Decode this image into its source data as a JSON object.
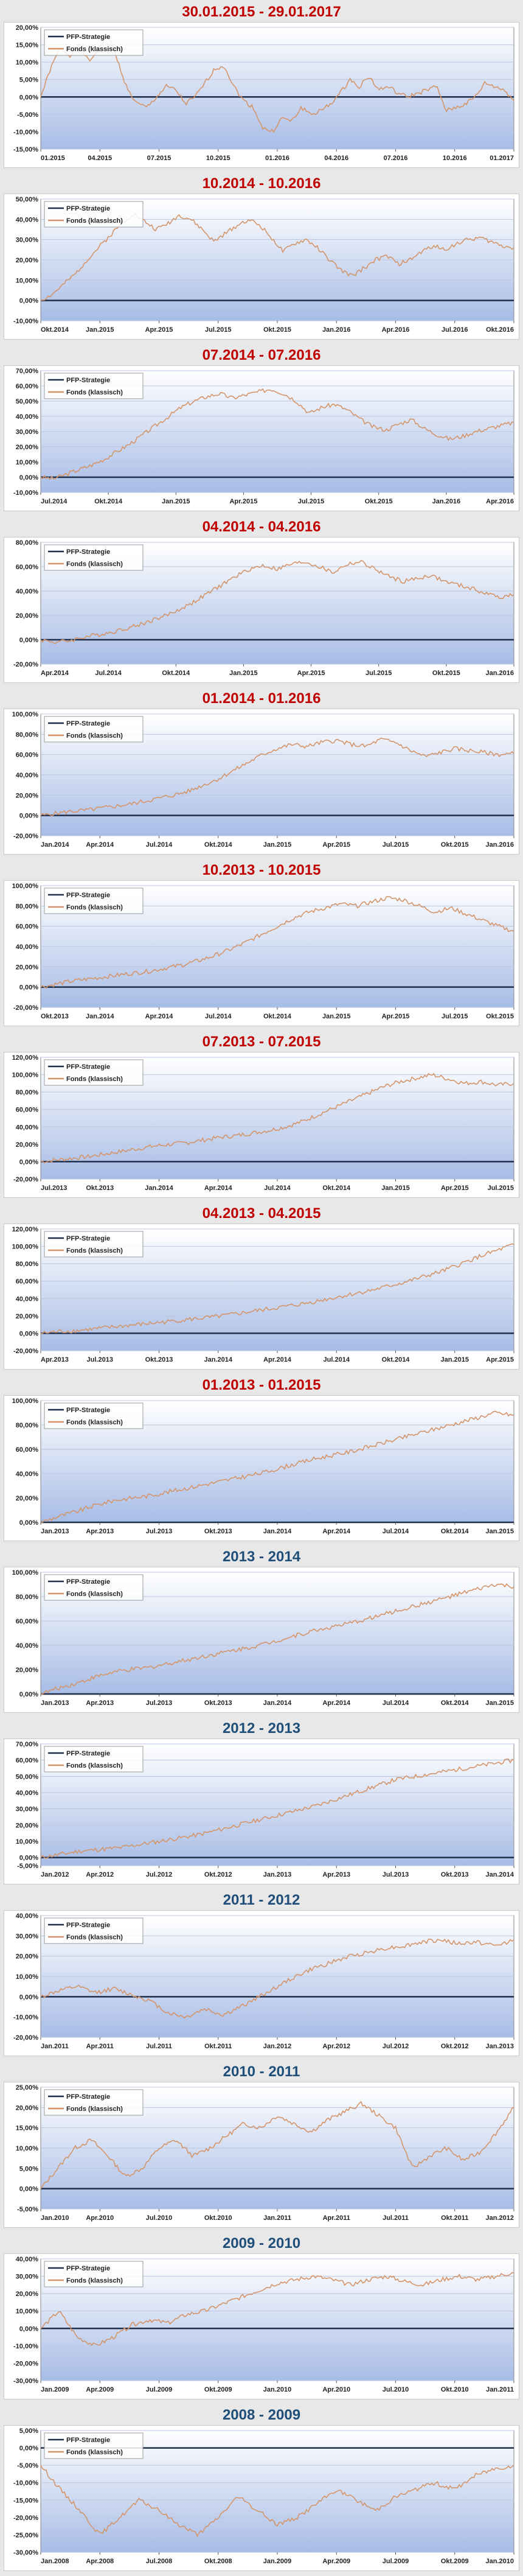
{
  "legend": {
    "strategy": "PFP-Strategie",
    "fund": "Fonds (klassisch)"
  },
  "colors": {
    "title_red": "#c00000",
    "title_blue": "#1f4e79",
    "fund_line": "#d4956a",
    "strategy_line": "#1f2e4a",
    "plot_top": "#ffffff",
    "plot_bottom": "#a7bce6"
  },
  "chart_data": [
    {
      "type": "line",
      "title": "30.01.2015 - 29.01.2017",
      "title_color": "red",
      "ylim": [
        -15,
        20
      ],
      "yticks": [
        20,
        15,
        10,
        5,
        0,
        -5,
        -10,
        -15
      ],
      "xticks": [
        "01.2015",
        "04.2015",
        "07.2015",
        "10.2015",
        "01.2016",
        "04.2016",
        "07.2016",
        "10.2016",
        "01.2017"
      ],
      "series": [
        {
          "name": "Fonds (klassisch)",
          "values": [
            0,
            8,
            14,
            12,
            15,
            10,
            14,
            18,
            10,
            2,
            -2,
            -3,
            0,
            3,
            2,
            -2,
            0,
            4,
            8,
            9,
            3,
            -1,
            -3,
            -9,
            -10,
            -6,
            -7,
            -3,
            -5,
            -4,
            -2,
            1,
            5,
            3,
            6,
            2,
            3,
            1,
            0,
            1,
            2,
            3,
            -4,
            -3,
            -2,
            0,
            4,
            3,
            2,
            -1
          ]
        }
      ]
    },
    {
      "type": "line",
      "title": "10.2014 - 10.2016",
      "title_color": "red",
      "ylim": [
        -10,
        50
      ],
      "yticks": [
        50,
        40,
        30,
        20,
        10,
        0,
        -10
      ],
      "xticks": [
        "Okt.2014",
        "Jan.2015",
        "Apr.2015",
        "Jul.2015",
        "Okt.2015",
        "Jan.2016",
        "Apr.2016",
        "Jul.2016",
        "Okt.2016"
      ],
      "series": [
        {
          "name": "Fonds (klassisch)",
          "values": [
            0,
            3,
            8,
            13,
            20,
            26,
            32,
            38,
            43,
            39,
            35,
            38,
            42,
            40,
            35,
            29,
            33,
            37,
            40,
            37,
            31,
            24,
            28,
            30,
            26,
            20,
            15,
            12,
            16,
            20,
            22,
            18,
            20,
            24,
            27,
            25,
            28,
            30,
            31,
            29,
            27,
            26
          ]
        }
      ]
    },
    {
      "type": "line",
      "title": "07.2014 - 07.2016",
      "title_color": "red",
      "ylim": [
        -10,
        70
      ],
      "yticks": [
        70,
        60,
        50,
        40,
        30,
        20,
        10,
        0,
        -10
      ],
      "xticks": [
        "Jul.2014",
        "Okt.2014",
        "Jan.2015",
        "Apr.2015",
        "Jul.2015",
        "Okt.2015",
        "Jan.2016",
        "Apr.2016"
      ],
      "series": [
        {
          "name": "Fonds (klassisch)",
          "values": [
            0,
            -1,
            2,
            5,
            8,
            12,
            17,
            22,
            28,
            34,
            40,
            46,
            50,
            53,
            55,
            52,
            54,
            56,
            58,
            55,
            50,
            42,
            46,
            48,
            44,
            38,
            33,
            31,
            35,
            38,
            32,
            28,
            25,
            27,
            30,
            32,
            34,
            36
          ]
        }
      ]
    },
    {
      "type": "line",
      "title": "04.2014 - 04.2016",
      "title_color": "red",
      "ylim": [
        -20,
        80
      ],
      "yticks": [
        80,
        60,
        40,
        20,
        0,
        -20
      ],
      "xticks": [
        "Apr.2014",
        "Jul.2014",
        "Okt.2014",
        "Jan.2015",
        "Apr.2015",
        "Jul.2015",
        "Okt.2015",
        "Jan.2016"
      ],
      "series": [
        {
          "name": "Fonds (klassisch)",
          "values": [
            0,
            -2,
            -1,
            2,
            4,
            6,
            9,
            12,
            16,
            20,
            25,
            31,
            38,
            45,
            52,
            58,
            61,
            58,
            62,
            64,
            60,
            55,
            62,
            64,
            58,
            52,
            48,
            50,
            53,
            48,
            45,
            42,
            38,
            35,
            37
          ]
        }
      ]
    },
    {
      "type": "line",
      "title": "01.2014 - 01.2016",
      "title_color": "red",
      "ylim": [
        -20,
        100
      ],
      "yticks": [
        100,
        80,
        60,
        40,
        20,
        0,
        -20
      ],
      "xticks": [
        "Jan.2014",
        "Apr.2014",
        "Jul.2014",
        "Okt.2014",
        "Jan.2015",
        "Apr.2015",
        "Jul.2015",
        "Okt.2015",
        "Jan.2016"
      ],
      "series": [
        {
          "name": "Fonds (klassisch)",
          "values": [
            0,
            2,
            4,
            5,
            7,
            9,
            11,
            14,
            17,
            20,
            24,
            30,
            36,
            44,
            52,
            60,
            66,
            70,
            68,
            72,
            74,
            70,
            68,
            75,
            72,
            64,
            58,
            62,
            66,
            64,
            62,
            60,
            61
          ]
        }
      ]
    },
    {
      "type": "line",
      "title": "10.2013 - 10.2015",
      "title_color": "red",
      "ylim": [
        -20,
        100
      ],
      "yticks": [
        100,
        80,
        60,
        40,
        20,
        0,
        -20
      ],
      "xticks": [
        "Okt.2013",
        "Jan.2014",
        "Apr.2014",
        "Jul.2014",
        "Okt.2014",
        "Jan.2015",
        "Apr.2015",
        "Jul.2015",
        "Okt.2015"
      ],
      "series": [
        {
          "name": "Fonds (klassisch)",
          "values": [
            0,
            3,
            6,
            8,
            10,
            12,
            14,
            16,
            19,
            22,
            26,
            31,
            37,
            44,
            52,
            60,
            68,
            74,
            78,
            82,
            80,
            84,
            88,
            86,
            80,
            74,
            78,
            72,
            66,
            60,
            55
          ]
        }
      ]
    },
    {
      "type": "line",
      "title": "07.2013 - 07.2015",
      "title_color": "red",
      "ylim": [
        -20,
        120
      ],
      "yticks": [
        120,
        100,
        80,
        60,
        40,
        20,
        0,
        -20
      ],
      "xticks": [
        "Jul.2013",
        "Okt.2013",
        "Jan.2014",
        "Apr.2014",
        "Jul.2014",
        "Okt.2014",
        "Jan.2015",
        "Apr.2015",
        "Jul.2015"
      ],
      "series": [
        {
          "name": "Fonds (klassisch)",
          "values": [
            0,
            2,
            4,
            6,
            9,
            12,
            15,
            18,
            20,
            22,
            25,
            28,
            30,
            33,
            36,
            40,
            46,
            54,
            62,
            70,
            78,
            86,
            92,
            96,
            100,
            95,
            90,
            92,
            88,
            90
          ]
        }
      ]
    },
    {
      "type": "line",
      "title": "04.2013 - 04.2015",
      "title_color": "red",
      "ylim": [
        -20,
        120
      ],
      "yticks": [
        120,
        100,
        80,
        60,
        40,
        20,
        0,
        -20
      ],
      "xticks": [
        "Apr.2013",
        "Jul.2013",
        "Okt.2013",
        "Jan.2014",
        "Apr.2014",
        "Jul.2014",
        "Okt.2014",
        "Jan.2015",
        "Apr.2015"
      ],
      "series": [
        {
          "name": "Fonds (klassisch)",
          "values": [
            0,
            2,
            3,
            5,
            7,
            9,
            11,
            13,
            15,
            17,
            19,
            22,
            25,
            28,
            31,
            34,
            38,
            42,
            46,
            50,
            55,
            60,
            66,
            72,
            80,
            88,
            95,
            102
          ]
        }
      ]
    },
    {
      "type": "line",
      "title": "01.2013 - 01.2015",
      "title_color": "red",
      "ylim": [
        0,
        100
      ],
      "yticks": [
        100,
        80,
        60,
        40,
        20,
        0
      ],
      "xticks": [
        "Jan.2013",
        "Apr.2013",
        "Jul.2013",
        "Okt.2013",
        "Jan.2014",
        "Apr.2014",
        "Jul.2014",
        "Okt.2014",
        "Jan.2015"
      ],
      "series": [
        {
          "name": "Fonds (klassisch)",
          "values": [
            0,
            5,
            9,
            14,
            18,
            20,
            22,
            25,
            28,
            31,
            34,
            37,
            40,
            44,
            48,
            52,
            55,
            58,
            62,
            66,
            70,
            74,
            78,
            82,
            86,
            90,
            88
          ]
        }
      ]
    },
    {
      "type": "line",
      "title": "2013 - 2014",
      "title_color": "blue",
      "ylim": [
        0,
        100
      ],
      "yticks": [
        100,
        80,
        60,
        40,
        20,
        0
      ],
      "xticks": [
        "Jan.2013",
        "Apr.2013",
        "Jul.2013",
        "Okt.2013",
        "Jan.2014",
        "Apr.2014",
        "Jul.2014",
        "Okt.2014",
        "Jan.2015"
      ],
      "series": [
        {
          "name": "Fonds (klassisch)",
          "values": [
            0,
            5,
            9,
            14,
            18,
            20,
            22,
            25,
            28,
            31,
            34,
            37,
            40,
            44,
            48,
            52,
            55,
            58,
            62,
            66,
            70,
            74,
            78,
            82,
            86,
            90,
            88
          ]
        }
      ]
    },
    {
      "type": "line",
      "title": "2012 - 2013",
      "title_color": "blue",
      "ylim": [
        -5,
        70
      ],
      "yticks": [
        70,
        60,
        50,
        40,
        30,
        20,
        10,
        0,
        -5
      ],
      "xticks": [
        "Jan.2012",
        "Apr.2012",
        "Jul.2012",
        "Okt.2012",
        "Jan.2013",
        "Apr.2013",
        "Jul.2013",
        "Okt.2013",
        "Jan.2014"
      ],
      "series": [
        {
          "name": "Fonds (klassisch)",
          "values": [
            0,
            2,
            4,
            5,
            6,
            8,
            10,
            12,
            14,
            17,
            20,
            23,
            26,
            29,
            32,
            36,
            40,
            44,
            48,
            50,
            52,
            54,
            56,
            58,
            60
          ]
        }
      ]
    },
    {
      "type": "line",
      "title": "2011 - 2012",
      "title_color": "blue",
      "ylim": [
        -20,
        40
      ],
      "yticks": [
        40,
        30,
        20,
        10,
        0,
        -10,
        -20
      ],
      "xticks": [
        "Jan.2011",
        "Apr.2011",
        "Jul.2011",
        "Okt.2011",
        "Jan.2012",
        "Apr.2012",
        "Jul.2012",
        "Okt.2012",
        "Jan.2013"
      ],
      "series": [
        {
          "name": "Fonds (klassisch)",
          "values": [
            0,
            3,
            5,
            2,
            4,
            1,
            -2,
            -8,
            -10,
            -6,
            -9,
            -5,
            0,
            5,
            10,
            14,
            17,
            20,
            22,
            24,
            25,
            27,
            28,
            26,
            27,
            25,
            28
          ]
        }
      ]
    },
    {
      "type": "line",
      "title": "2010 - 2011",
      "title_color": "blue",
      "ylim": [
        -5,
        25
      ],
      "yticks": [
        25,
        20,
        15,
        10,
        5,
        0,
        -5
      ],
      "xticks": [
        "Jan.2010",
        "Apr.2010",
        "Jul.2010",
        "Okt.2010",
        "Jan.2011",
        "Apr.2011",
        "Jul.2011",
        "Okt.2011",
        "Jan.2012"
      ],
      "series": [
        {
          "name": "Fonds (klassisch)",
          "values": [
            0,
            5,
            10,
            12,
            8,
            3,
            5,
            10,
            12,
            8,
            10,
            13,
            16,
            15,
            18,
            16,
            14,
            17,
            19,
            21,
            18,
            15,
            5,
            8,
            10,
            7,
            9,
            14,
            20
          ]
        }
      ]
    },
    {
      "type": "line",
      "title": "2009 - 2010",
      "title_color": "blue",
      "ylim": [
        -30,
        40
      ],
      "yticks": [
        40,
        30,
        20,
        10,
        0,
        -10,
        -20,
        -30
      ],
      "xticks": [
        "Jan.2009",
        "Apr.2009",
        "Jul.2009",
        "Okt.2009",
        "Jan.2010",
        "Apr.2010",
        "Jul.2010",
        "Okt.2010",
        "Jan.2011"
      ],
      "series": [
        {
          "name": "Fonds (klassisch)",
          "values": [
            0,
            10,
            -5,
            -10,
            -5,
            2,
            5,
            3,
            8,
            10,
            14,
            18,
            22,
            26,
            28,
            30,
            28,
            25,
            28,
            30,
            27,
            25,
            28,
            30,
            28,
            30,
            32
          ]
        }
      ]
    },
    {
      "type": "line",
      "title": "2008 - 2009",
      "title_color": "blue",
      "ylim": [
        -30,
        5
      ],
      "yticks": [
        5,
        0,
        -5,
        -10,
        -15,
        -20,
        -25,
        -30
      ],
      "xticks": [
        "Jan.2008",
        "Apr.2008",
        "Jul.2008",
        "Okt.2008",
        "Jan.2009",
        "Apr.2009",
        "Jul.2009",
        "Okt.2009",
        "Jan.2010"
      ],
      "series": [
        {
          "name": "Fonds (klassisch)",
          "values": [
            -5,
            -12,
            -18,
            -25,
            -20,
            -15,
            -18,
            -22,
            -25,
            -20,
            -14,
            -18,
            -22,
            -20,
            -16,
            -12,
            -15,
            -18,
            -14,
            -12,
            -10,
            -12,
            -8,
            -6,
            -5
          ]
        }
      ]
    }
  ]
}
